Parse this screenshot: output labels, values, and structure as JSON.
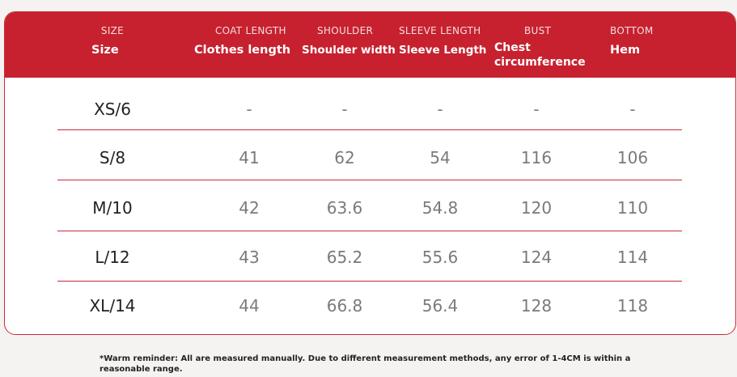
{
  "header": {
    "columns": [
      {
        "en": "SIZE",
        "cn": "Size"
      },
      {
        "en": "COAT LENGTH",
        "cn": "Clothes length"
      },
      {
        "en": "SHOULDER",
        "cn": "Shoulder width"
      },
      {
        "en": "SLEEVE LENGTH",
        "cn": "Sleeve Length"
      },
      {
        "en": "BUST",
        "cn": "Chest circumference"
      },
      {
        "en": "BOTTOM",
        "cn": "Hem"
      }
    ]
  },
  "rows": [
    {
      "size": "XS/6",
      "values": [
        "-",
        "-",
        "-",
        "-",
        "-"
      ]
    },
    {
      "size": "S/8",
      "values": [
        "41",
        "62",
        "54",
        "116",
        "106"
      ]
    },
    {
      "size": "M/10",
      "values": [
        "42",
        "63.6",
        "54.8",
        "120",
        "110"
      ]
    },
    {
      "size": "L/12",
      "values": [
        "43",
        "65.2",
        "55.6",
        "124",
        "114"
      ]
    },
    {
      "size": "XL/14",
      "values": [
        "44",
        "66.8",
        "56.4",
        "128",
        "118"
      ]
    }
  ],
  "note": "*Warm reminder: All are measured manually. Due to different measurement methods, any error of 1-4CM is within a reasonable range."
}
